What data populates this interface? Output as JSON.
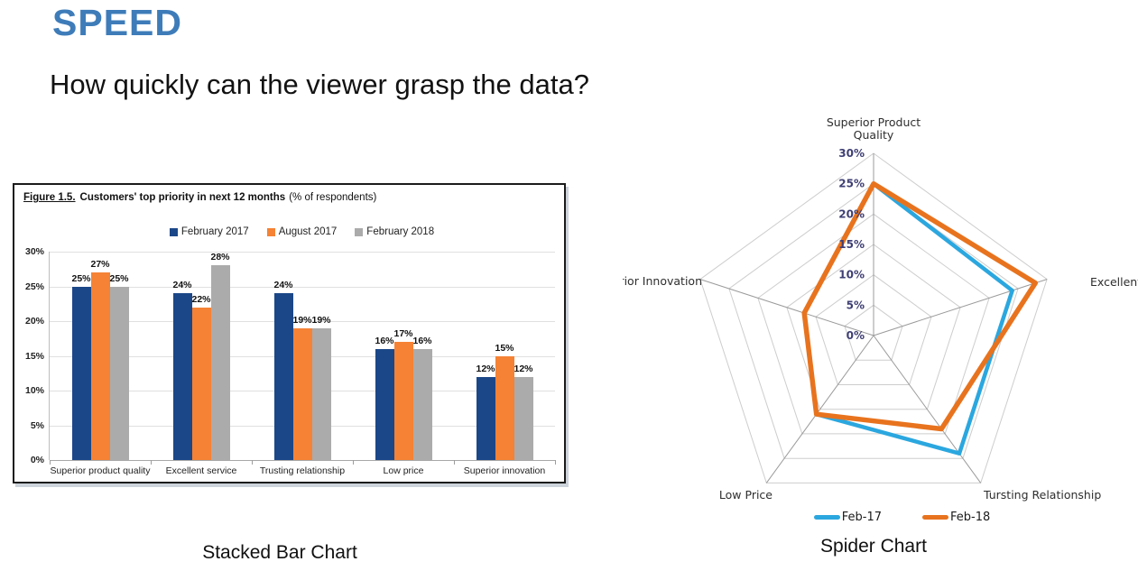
{
  "slide": {
    "title": "SPEED",
    "subtitle": "How quickly can the viewer grasp the data?",
    "captions": {
      "bar": "Stacked Bar Chart",
      "spider": "Spider Chart"
    },
    "title_color": "#3E7CB9"
  },
  "chart_data": [
    {
      "type": "bar",
      "title_prefix": "Figure 1.5.",
      "title_main": "Customers' top priority in next 12 months",
      "title_suffix": "(% of respondents)",
      "categories": [
        "Superior product quality",
        "Excellent service",
        "Trusting relationship",
        "Low price",
        "Superior innovation"
      ],
      "series": [
        {
          "name": "February 2017",
          "color": "#1B4788",
          "values": [
            25,
            24,
            24,
            16,
            12
          ]
        },
        {
          "name": "August 2017",
          "color": "#F58235",
          "values": [
            27,
            22,
            19,
            17,
            15
          ]
        },
        {
          "name": "February 2018",
          "color": "#ABABAB",
          "values": [
            25,
            28,
            19,
            16,
            12
          ]
        }
      ],
      "ylim": [
        0,
        30
      ],
      "ytick_step": 5,
      "ytick_suffix": "%",
      "value_label_suffix": "%",
      "legend_position": "top",
      "grid": true
    },
    {
      "type": "radar",
      "axes": [
        "Superior Product Quality",
        "Excellent Service",
        "Tursting Relationship",
        "Low Price",
        "Superior Innovation"
      ],
      "series": [
        {
          "name": "Feb-17",
          "color": "#2BA7DF",
          "values": [
            25,
            24,
            24,
            16,
            12
          ]
        },
        {
          "name": "Feb-18",
          "color": "#E8731E",
          "values": [
            25,
            28,
            19,
            16,
            12
          ]
        }
      ],
      "rmax": 30,
      "rtick_step": 5,
      "rtick_suffix": "%",
      "tick_color": "#3F3F75",
      "legend_position": "bottom",
      "grid": true
    }
  ]
}
